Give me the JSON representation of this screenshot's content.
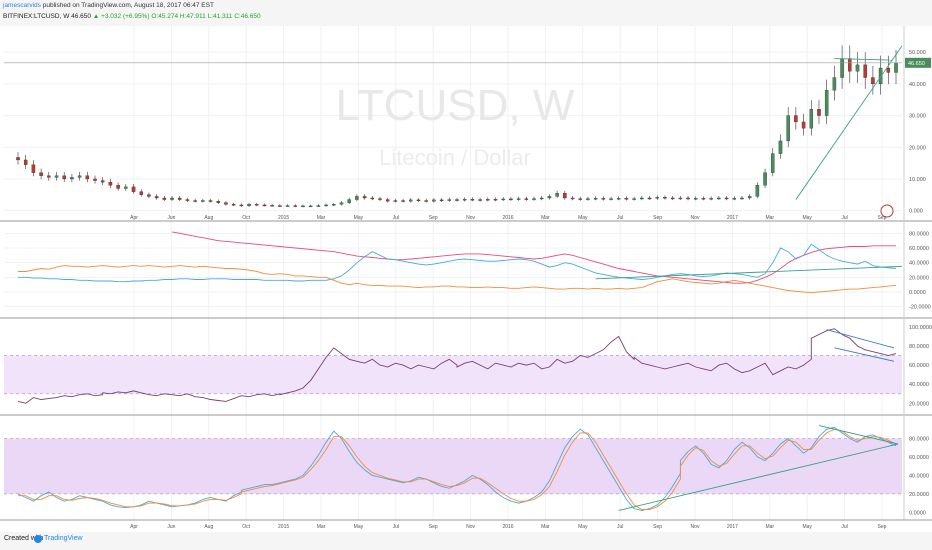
{
  "header": {
    "author": "jamescarvids",
    "published": "published on TradingView.com, August 18, 2017 06:47 EST",
    "symbol": "BITFINEX:LTCUSD, W",
    "price": "46.650",
    "change": "▲ +3.032 (+6.95%)",
    "ohlc": "O:45.274 H:47.911 L:41.311 C:46.650"
  },
  "footer": {
    "created": "Created with",
    "brand": "TradingView"
  },
  "chart_data": [
    {
      "type": "candlestick",
      "watermark": "LTCUSD, W",
      "watermark_sub": "Litecoin / Dollar",
      "last_price_label": "46.650",
      "ylim": [
        -2,
        57
      ],
      "y_ticks": [
        "0.000",
        "10.000",
        "20.000",
        "30.000",
        "40.000",
        "50.000"
      ],
      "x_ticks": [
        "Apr",
        "Jun",
        "Aug",
        "Oct",
        "2015",
        "Mar",
        "May",
        "Jul",
        "Sep",
        "Nov",
        "2016",
        "Mar",
        "May",
        "Jul",
        "Sep",
        "Nov",
        "2017",
        "Mar",
        "May",
        "Jul",
        "Sep"
      ],
      "close": [
        16.0,
        14.5,
        12.0,
        11.0,
        10.5,
        11.0,
        10.0,
        10.5,
        11.0,
        10.0,
        9.5,
        9.0,
        8.0,
        7.0,
        7.5,
        6.0,
        5.0,
        4.5,
        4.0,
        3.5,
        4.0,
        3.5,
        3.2,
        3.0,
        3.2,
        3.0,
        2.5,
        2.0,
        1.8,
        1.5,
        2.0,
        1.8,
        1.7,
        1.6,
        1.5,
        1.6,
        1.4,
        1.5,
        1.5,
        1.6,
        1.8,
        2.0,
        2.5,
        3.5,
        4.5,
        4.0,
        3.8,
        3.5,
        3.0,
        3.2,
        3.0,
        3.4,
        3.2,
        3.0,
        3.4,
        3.2,
        3.5,
        3.4,
        3.6,
        3.5,
        3.4,
        3.6,
        3.5,
        3.7,
        3.6,
        3.8,
        3.6,
        3.8,
        4.0,
        4.5,
        5.5,
        4.0,
        3.8,
        3.6,
        3.8,
        3.9,
        3.7,
        3.8,
        3.9,
        3.7,
        3.8,
        4.0,
        3.9,
        4.2,
        4.0,
        3.9,
        4.0,
        3.8,
        3.9,
        3.8,
        3.9,
        4.0,
        3.8,
        3.9,
        4.0,
        4.5,
        8.0,
        12.0,
        18.0,
        22.0,
        30.0,
        28.0,
        26.0,
        32.0,
        30.0,
        38.0,
        42.0,
        48.0,
        44.0,
        46.0,
        42.0,
        40.0,
        45.0,
        43.6,
        46.65
      ],
      "series_name": ""
    },
    {
      "type": "line",
      "ylim": [
        -30,
        90
      ],
      "y_ticks": [
        "-20.0000",
        "0.0000",
        "20.0000",
        "40.0000",
        "60.0000",
        "80.0000"
      ],
      "series": [
        {
          "name": "",
          "color": "#e84c7a",
          "values": [
            null,
            null,
            null,
            null,
            null,
            null,
            null,
            null,
            null,
            null,
            null,
            null,
            null,
            null,
            null,
            null,
            null,
            null,
            null,
            null,
            82,
            80,
            78,
            76,
            74,
            72,
            70,
            69,
            68,
            67,
            66,
            65,
            64,
            63,
            62,
            61,
            60,
            59,
            58,
            57,
            56,
            55,
            53,
            51,
            49,
            48,
            47,
            46,
            45,
            44,
            44,
            45,
            46,
            47,
            48,
            49,
            50,
            51,
            52,
            52,
            52,
            51,
            50,
            49,
            48,
            47,
            46,
            45,
            46,
            48,
            50,
            52,
            50,
            47,
            44,
            41,
            38,
            35,
            32,
            30,
            28,
            26,
            24,
            22,
            21,
            20,
            19,
            18,
            17,
            16,
            15,
            14,
            13,
            12,
            12,
            13,
            16,
            20,
            25,
            32,
            40,
            46,
            50,
            54,
            57,
            59,
            60,
            61,
            62,
            62,
            62,
            63,
            63,
            63,
            63
          ]
        },
        {
          "name": "",
          "color": "#4aa8e0",
          "values": [
            20,
            20,
            19,
            19,
            18,
            18,
            17,
            17,
            16,
            16,
            15,
            15,
            15,
            14,
            14,
            15,
            15,
            16,
            16,
            17,
            17,
            18,
            18,
            17,
            17,
            18,
            18,
            18,
            17,
            17,
            17,
            17,
            16,
            16,
            16,
            16,
            15,
            15,
            16,
            16,
            16,
            18,
            22,
            30,
            40,
            48,
            55,
            50,
            45,
            44,
            42,
            40,
            38,
            37,
            38,
            40,
            42,
            44,
            45,
            44,
            43,
            42,
            42,
            43,
            44,
            45,
            44,
            42,
            38,
            34,
            36,
            40,
            38,
            34,
            30,
            26,
            24,
            22,
            20,
            19,
            18,
            17,
            18,
            20,
            22,
            24,
            25,
            24,
            22,
            21,
            22,
            24,
            26,
            25,
            24,
            22,
            20,
            25,
            40,
            60,
            55,
            45,
            50,
            65,
            58,
            50,
            45,
            42,
            40,
            38,
            42,
            36,
            34,
            33,
            32
          ]
        },
        {
          "name": "",
          "color": "#f28c3a",
          "values": [
            28,
            28,
            30,
            32,
            31,
            34,
            36,
            35,
            35,
            34,
            35,
            36,
            35,
            34,
            35,
            36,
            35,
            36,
            35,
            34,
            35,
            36,
            35,
            34,
            35,
            34,
            33,
            32,
            32,
            31,
            30,
            28,
            25,
            24,
            25,
            24,
            22,
            22,
            21,
            20,
            20,
            16,
            12,
            10,
            12,
            10,
            9,
            9,
            8,
            8,
            8,
            7,
            6,
            7,
            7,
            8,
            8,
            7,
            7,
            6,
            6,
            7,
            6,
            6,
            5,
            5,
            6,
            7,
            6,
            5,
            4,
            4,
            5,
            5,
            4,
            5,
            4,
            4,
            5,
            4,
            5,
            6,
            10,
            14,
            16,
            18,
            16,
            14,
            13,
            12,
            11,
            12,
            14,
            16,
            14,
            12,
            10,
            8,
            6,
            4,
            2,
            1,
            0,
            -1,
            0,
            1,
            2,
            3,
            4,
            4,
            5,
            6,
            7,
            8,
            9
          ]
        }
      ]
    },
    {
      "type": "line",
      "ylim": [
        12,
        104
      ],
      "y_ticks": [
        "20.0000",
        "40.0000",
        "60.0000",
        "80.0000",
        "100.0000"
      ],
      "series": [
        {
          "name": "",
          "color": "#7b3f6e",
          "values": [
            22,
            20,
            26,
            24,
            25,
            26,
            28,
            27,
            29,
            30,
            28,
            29,
            31,
            30,
            32,
            31,
            33,
            31,
            29,
            28,
            30,
            29,
            28,
            30,
            27,
            26,
            24,
            23,
            22,
            25,
            28,
            27,
            29,
            30,
            28,
            30,
            29,
            31,
            33,
            36,
            44,
            56,
            68,
            78,
            72,
            66,
            64,
            62,
            66,
            60,
            58,
            62,
            60,
            56,
            60,
            58,
            56,
            62,
            66,
            60,
            58,
            62,
            64,
            60,
            56,
            62,
            60,
            58,
            62,
            60,
            62,
            56,
            58,
            66,
            62,
            64,
            70,
            68,
            72,
            76,
            84,
            90,
            74,
            66,
            68,
            62,
            60,
            58,
            56,
            58,
            60,
            62,
            58,
            56,
            54,
            60,
            62,
            56,
            52,
            54,
            58,
            62,
            50,
            54,
            58,
            56,
            60,
            66,
            88,
            92,
            96,
            98,
            92,
            88,
            80,
            76,
            74,
            72,
            70,
            72
          ]
        }
      ]
    },
    {
      "type": "line",
      "ylim": [
        -4,
        100
      ],
      "y_ticks": [
        "0.0000",
        "20.0000",
        "40.0000",
        "60.0000",
        "80.0000"
      ],
      "series": [
        {
          "name": "",
          "color": "#4aa8e0",
          "values": [
            20,
            16,
            12,
            18,
            22,
            16,
            12,
            14,
            18,
            16,
            14,
            12,
            8,
            6,
            5,
            6,
            8,
            12,
            10,
            8,
            6,
            7,
            8,
            10,
            14,
            16,
            14,
            12,
            18,
            22,
            24,
            26,
            28,
            30,
            30,
            32,
            34,
            36,
            40,
            50,
            62,
            76,
            88,
            80,
            66,
            54,
            46,
            40,
            38,
            36,
            34,
            32,
            34,
            38,
            36,
            32,
            28,
            26,
            30,
            34,
            40,
            36,
            30,
            22,
            16,
            12,
            10,
            12,
            16,
            22,
            34,
            52,
            70,
            82,
            90,
            84,
            70,
            56,
            42,
            28,
            14,
            4,
            2,
            4,
            8,
            16,
            28,
            42,
            56,
            66,
            72,
            64,
            52,
            48,
            56,
            68,
            76,
            70,
            60,
            56,
            64,
            74,
            80,
            72,
            64,
            70,
            82,
            90,
            92,
            86,
            80,
            76,
            82,
            84,
            80,
            76,
            72
          ]
        },
        {
          "name": "",
          "color": "#f28c3a",
          "values": [
            18,
            18,
            14,
            14,
            18,
            18,
            14,
            13,
            15,
            16,
            15,
            13,
            10,
            8,
            6,
            6,
            7,
            10,
            10,
            9,
            7,
            7,
            8,
            9,
            12,
            14,
            14,
            13,
            16,
            20,
            22,
            24,
            26,
            28,
            29,
            31,
            33,
            35,
            38,
            46,
            56,
            68,
            82,
            82,
            72,
            60,
            50,
            43,
            40,
            37,
            35,
            33,
            33,
            36,
            36,
            33,
            30,
            28,
            29,
            32,
            37,
            37,
            32,
            26,
            20,
            15,
            12,
            12,
            14,
            19,
            28,
            44,
            62,
            76,
            86,
            86,
            76,
            62,
            48,
            34,
            20,
            8,
            3,
            3,
            6,
            12,
            22,
            36,
            50,
            62,
            70,
            67,
            56,
            50,
            53,
            63,
            72,
            72,
            64,
            58,
            61,
            70,
            78,
            76,
            68,
            68,
            78,
            86,
            90,
            88,
            82,
            78,
            80,
            82,
            81,
            78,
            74
          ]
        }
      ]
    }
  ]
}
